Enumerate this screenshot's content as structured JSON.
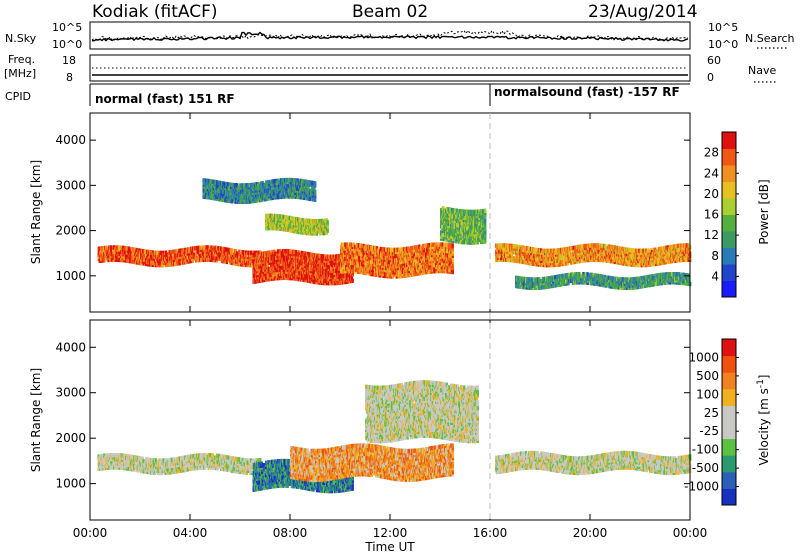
{
  "header": {
    "station": "Kodiak (fitACF)",
    "beam": "Beam 02",
    "date": "23/Aug/2014"
  },
  "top_panels": {
    "nsky_label": "N.Sky",
    "nsky_ticks": [
      "10^5",
      "10^0"
    ],
    "nsearch_label": "N.Search",
    "nsearch_ticks": [
      "10^5",
      "10^0"
    ],
    "freq_label": "Freq.",
    "freq_unit": "[MHz]",
    "freq_ticks": [
      "18",
      "8"
    ],
    "nave_label": "Nave",
    "nave_ticks": [
      "60",
      "0"
    ],
    "cpid_label": "CPID",
    "modes": [
      {
        "name": "normal (fast) 151 RF",
        "start": "00:00"
      },
      {
        "name": "normalsound (fast) -157 RF",
        "start": "16:00"
      }
    ]
  },
  "chart_data": [
    {
      "type": "heatmap",
      "panel": "power",
      "x": [
        "00:00",
        "04:00",
        "08:00",
        "12:00",
        "16:00",
        "20:00",
        "00:00"
      ],
      "xlim": [
        0,
        24
      ],
      "xlabel": "Time UT",
      "ylabel": "Slant Range [km]",
      "yticks": [
        "1000",
        "2000",
        "3000",
        "4000"
      ],
      "ylim": [
        200,
        4600
      ],
      "colorbar": {
        "label": "Power [dB]",
        "ticks": [
          "4",
          "8",
          "12",
          "16",
          "20",
          "24",
          "28"
        ],
        "colors": [
          "#1a1aff",
          "#2244c8",
          "#2a7cb8",
          "#3c9a62",
          "#55b040",
          "#a8d030",
          "#e6c020",
          "#f09020",
          "#f05818",
          "#e01010"
        ]
      },
      "bands": [
        {
          "t0": 0.3,
          "t1": 6.8,
          "r0": 1300,
          "r1": 1600,
          "level": 0.85
        },
        {
          "t0": 6.5,
          "t1": 10.5,
          "r0": 900,
          "r1": 1500,
          "level": 0.9
        },
        {
          "t0": 7.0,
          "t1": 9.5,
          "r0": 2000,
          "r1": 2300,
          "level": 0.55
        },
        {
          "t0": 10.0,
          "t1": 14.5,
          "r0": 1050,
          "r1": 1650,
          "level": 0.8
        },
        {
          "t0": 14.0,
          "t1": 15.8,
          "r0": 1800,
          "r1": 2500,
          "level": 0.45
        },
        {
          "t0": 16.2,
          "t1": 24.0,
          "r0": 1300,
          "r1": 1650,
          "level": 0.75
        },
        {
          "t0": 17.0,
          "t1": 24.0,
          "r0": 800,
          "r1": 1000,
          "level": 0.35
        },
        {
          "t0": 4.5,
          "t1": 9.0,
          "r0": 2700,
          "r1": 3100,
          "level": 0.3
        }
      ]
    },
    {
      "type": "heatmap",
      "panel": "velocity",
      "x": [
        "00:00",
        "04:00",
        "08:00",
        "12:00",
        "16:00",
        "20:00",
        "00:00"
      ],
      "xlim": [
        0,
        24
      ],
      "xlabel": "Time UT",
      "ylabel": "Slant Range [km]",
      "yticks": [
        "1000",
        "2000",
        "3000",
        "4000"
      ],
      "ylim": [
        200,
        4600
      ],
      "colorbar": {
        "label": "Velocity [m s^-1]",
        "ticks": [
          "1000",
          "500",
          "100",
          "25",
          "-25",
          "-100",
          "-500",
          "-1000"
        ],
        "colors": [
          "#1a30c0",
          "#2a60b8",
          "#2a9a70",
          "#5cc040",
          "#c8c8c4",
          "#c8c8c4",
          "#f0b020",
          "#f08020",
          "#f05010",
          "#e01010"
        ]
      },
      "bands": [
        {
          "t0": 0.3,
          "t1": 6.8,
          "r0": 1300,
          "r1": 1600,
          "level": 0.5
        },
        {
          "t0": 6.5,
          "t1": 10.5,
          "r0": 900,
          "r1": 1450,
          "level": 0.2
        },
        {
          "t0": 8.0,
          "t1": 14.5,
          "r0": 1150,
          "r1": 1800,
          "level": 0.7
        },
        {
          "t0": 16.2,
          "t1": 24.0,
          "r0": 1300,
          "r1": 1650,
          "level": 0.5
        },
        {
          "t0": 11.0,
          "t1": 15.5,
          "r0": 2000,
          "r1": 3200,
          "level": 0.5
        }
      ]
    }
  ]
}
